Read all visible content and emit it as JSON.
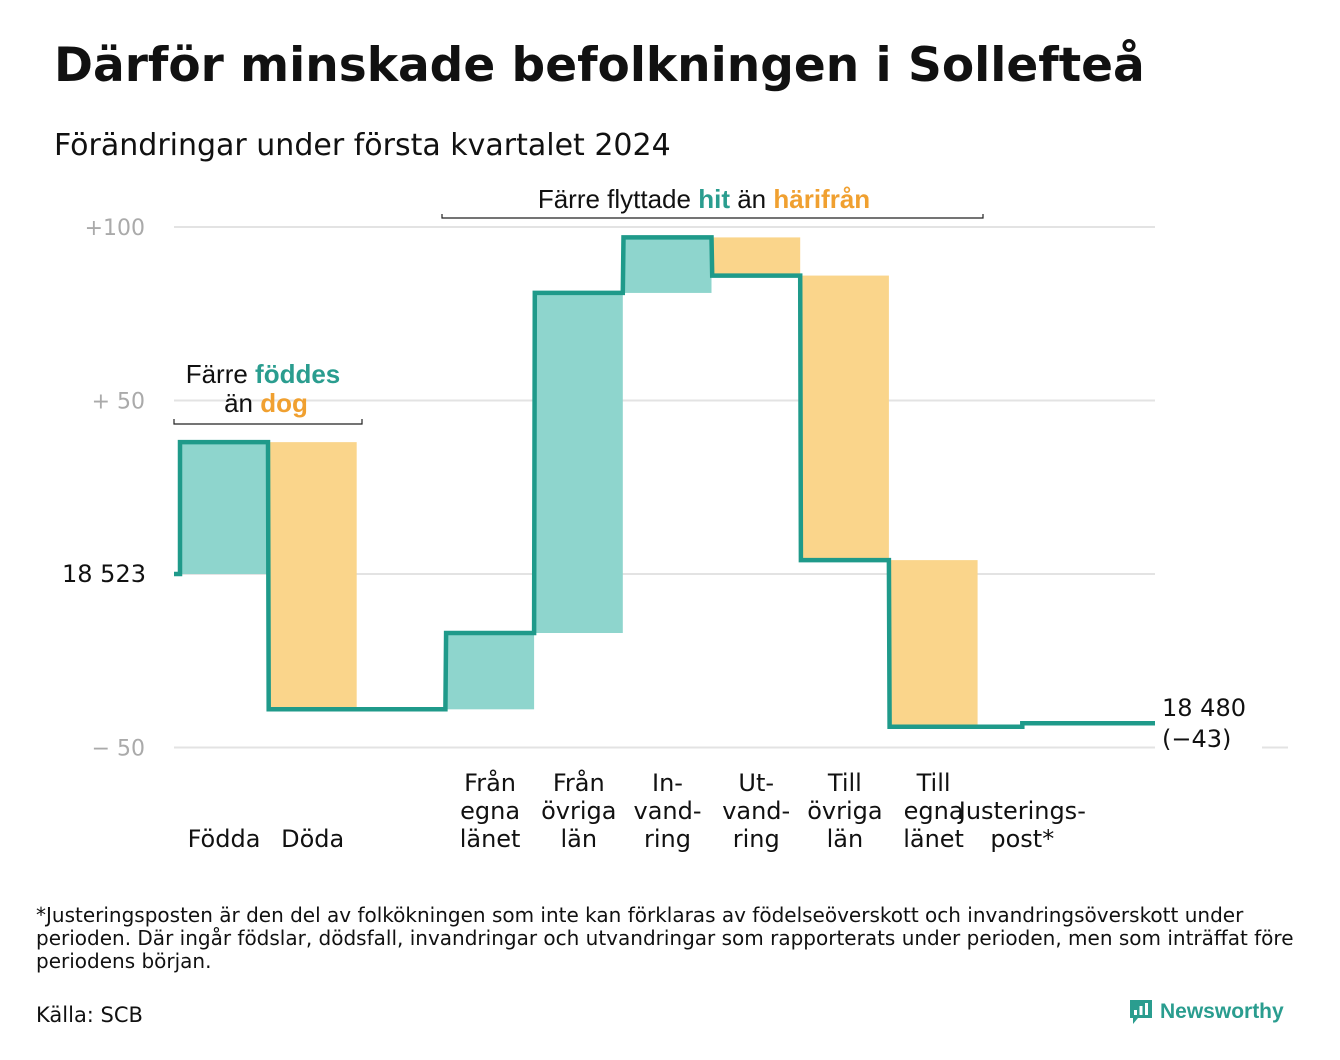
{
  "title": "Därför minskade befolkningen i Sollefteå",
  "subtitle": "Förändringar under första kvartalet 2024",
  "colors": {
    "increase": "#8ed5cd",
    "decrease": "#fad58b",
    "line": "#1f9a8a",
    "increase_text": "#2a9d8f",
    "decrease_text": "#f0a030",
    "grid": "#e3e3e3",
    "tick": "#aaaaaa"
  },
  "chart_data": {
    "type": "waterfall",
    "start_value": 18523,
    "end_value": 18480,
    "net_change": -43,
    "start_label": "18  523",
    "end_label": "18 480",
    "end_change_label": "(−43)",
    "ylim": [
      -50,
      100
    ],
    "yticks": [
      {
        "value": 100,
        "label": "+100"
      },
      {
        "value": 50,
        "label": "+  50"
      },
      {
        "value": -50,
        "label": "−  50"
      }
    ],
    "steps": [
      {
        "name": "births",
        "label_lines": [
          "Födda"
        ],
        "change": 38,
        "kind": "increase"
      },
      {
        "name": "deaths",
        "label_lines": [
          "Döda"
        ],
        "change": -77,
        "kind": "decrease"
      },
      {
        "name": "gap",
        "label_lines": [],
        "change": 0,
        "kind": "gap"
      },
      {
        "name": "from-own-county",
        "label_lines": [
          "Från",
          "egna",
          "länet"
        ],
        "change": 22,
        "kind": "increase"
      },
      {
        "name": "from-other-counties",
        "label_lines": [
          "Från",
          "övriga",
          "län"
        ],
        "change": 98,
        "kind": "increase"
      },
      {
        "name": "immigration",
        "label_lines": [
          "In-",
          "vand-",
          "ring"
        ],
        "change": 16,
        "kind": "increase"
      },
      {
        "name": "emigration",
        "label_lines": [
          "Ut-",
          "vand-",
          "ring"
        ],
        "change": -11,
        "kind": "decrease"
      },
      {
        "name": "to-other-counties",
        "label_lines": [
          "Till",
          "övriga",
          "län"
        ],
        "change": -82,
        "kind": "decrease"
      },
      {
        "name": "to-own-county",
        "label_lines": [
          "Till",
          "egna",
          "länet"
        ],
        "change": -48,
        "kind": "decrease"
      },
      {
        "name": "adjustment",
        "label_lines": [
          "Justerings-",
          "post*"
        ],
        "change": 1,
        "kind": "adjustment"
      }
    ],
    "annotations": [
      {
        "name": "births-deaths",
        "line1": [
          [
            "Färre ",
            "plain"
          ],
          [
            "föddes",
            "increase"
          ]
        ],
        "line2": [
          [
            "än ",
            "plain"
          ],
          [
            "dog",
            "decrease"
          ]
        ]
      },
      {
        "name": "migration",
        "line1": [
          [
            "Färre flyttade ",
            "plain"
          ],
          [
            "hit",
            "increase"
          ],
          [
            " än ",
            "plain"
          ],
          [
            "härifrån",
            "decrease"
          ]
        ]
      }
    ]
  },
  "footnote": "*Justeringsposten är den del av folkökningen som inte kan förklaras av födelseöverskott och invandringsöverskott under perioden. Där ingår födslar, dödsfall, invandringar och utvandringar som rapporterats under perioden, men som inträffat före periodens början.",
  "source": "Källa: SCB",
  "brand": "Newsworthy"
}
